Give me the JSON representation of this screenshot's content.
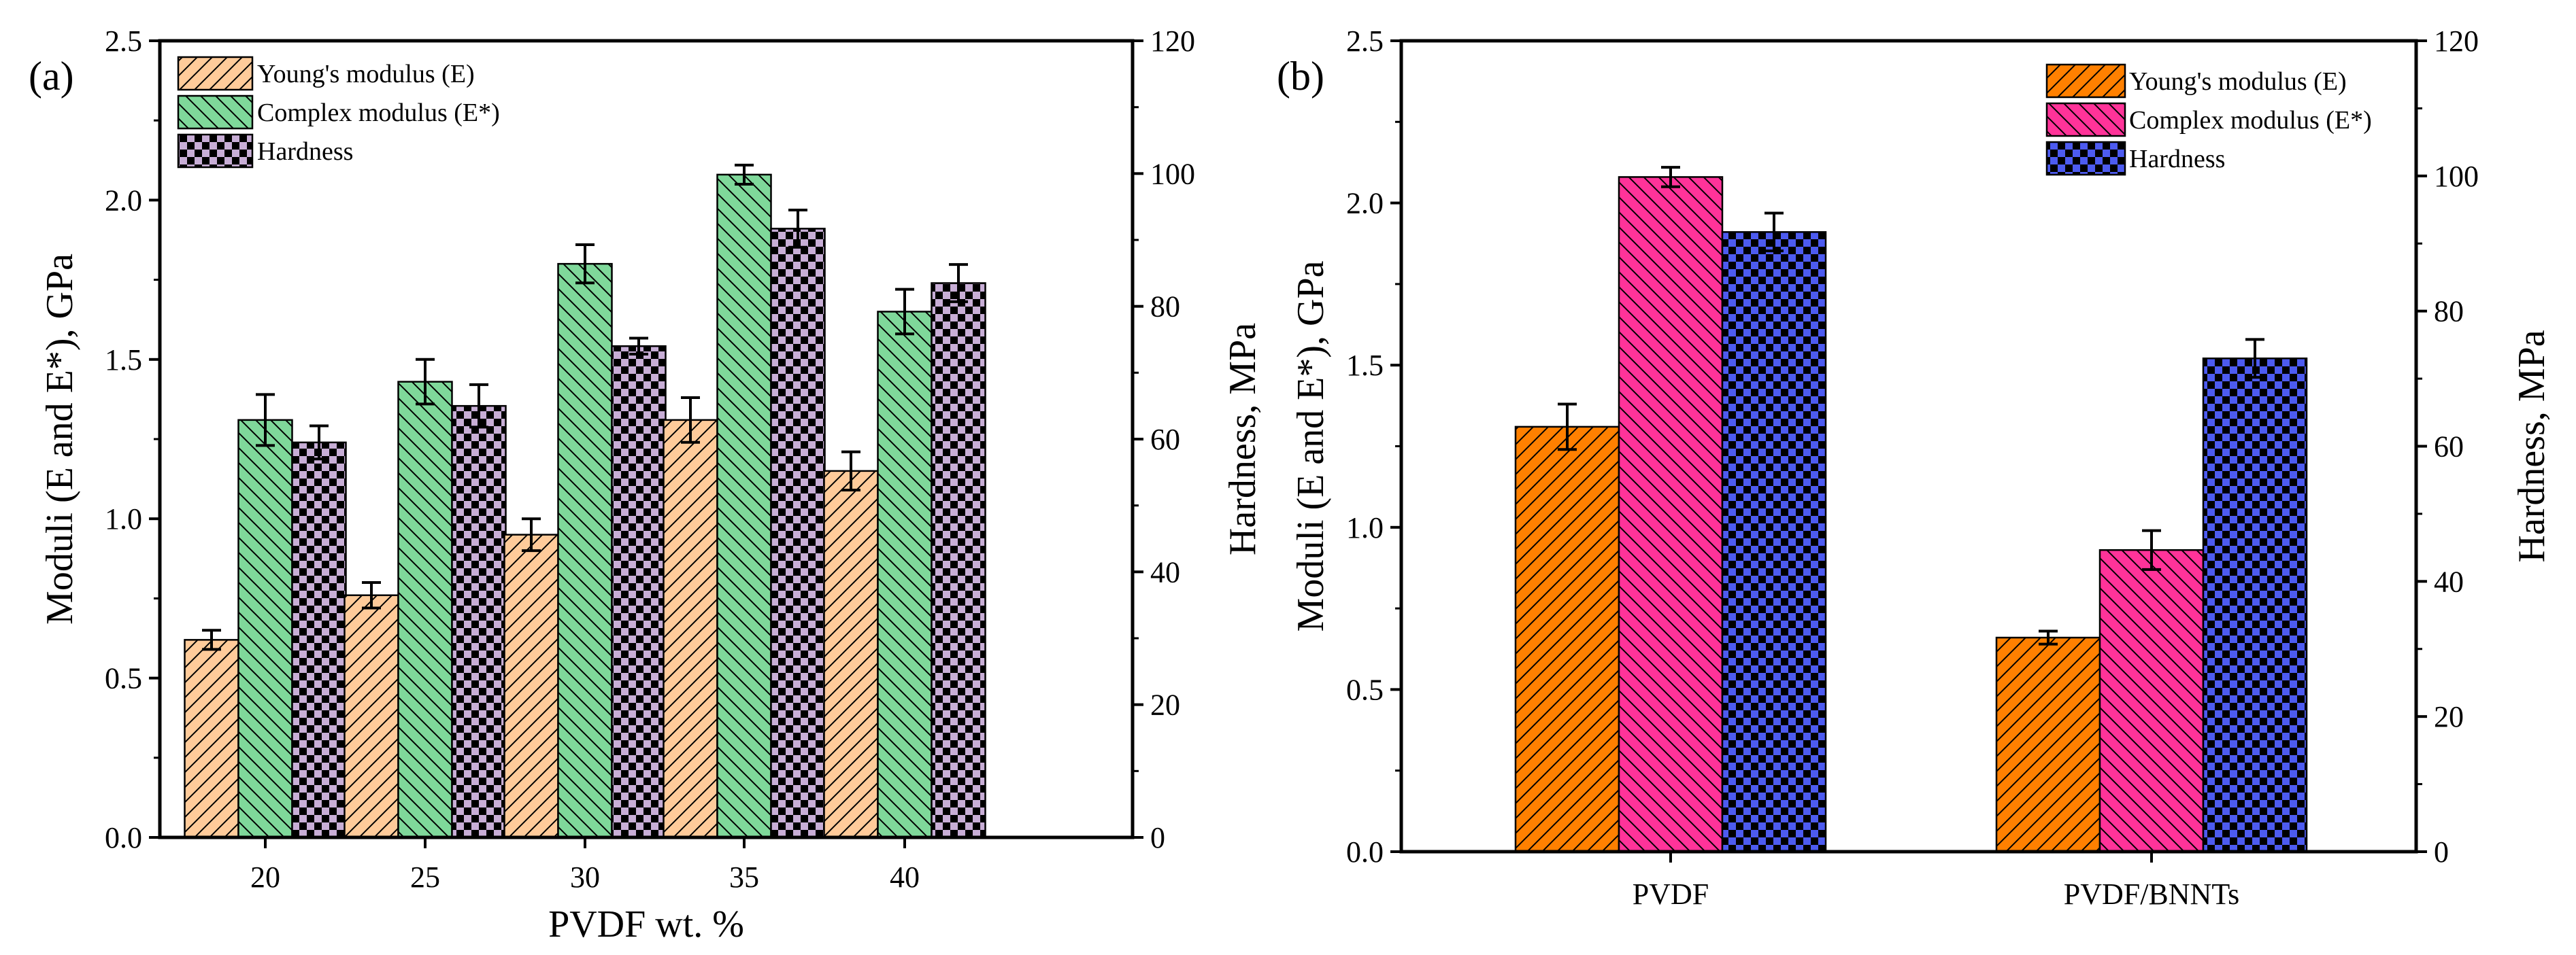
{
  "chart_data": [
    {
      "panel_label": "(a)",
      "type": "bar",
      "categories": [
        "20",
        "25",
        "30",
        "35",
        "40"
      ],
      "xlabel": "PVDF wt. %",
      "ylabel_left": "Moduli (E and E*), GPa",
      "ylabel_right": "Hardness, MPa",
      "ylim_left": [
        0,
        2.5
      ],
      "ylim_right": [
        0,
        120
      ],
      "yticks_left": [
        "0.0",
        "0.5",
        "1.0",
        "1.5",
        "2.0",
        "2.5"
      ],
      "yticks_right": [
        "0",
        "20",
        "40",
        "60",
        "80",
        "100",
        "120"
      ],
      "legend_position": "top-left",
      "series": [
        {
          "name": "Young's modulus (E)",
          "axis": "left",
          "color": "#FFCB9A",
          "pattern": "hatch",
          "values": [
            0.62,
            0.76,
            0.95,
            1.31,
            1.15
          ],
          "errors": [
            0.03,
            0.04,
            0.05,
            0.07,
            0.06
          ]
        },
        {
          "name": "Complex modulus (E*)",
          "axis": "left",
          "color": "#7FD89A",
          "pattern": "hatch-back",
          "values": [
            1.31,
            1.43,
            1.8,
            2.08,
            1.65
          ],
          "errors": [
            0.08,
            0.07,
            0.06,
            0.03,
            0.07
          ]
        },
        {
          "name": "Hardness",
          "axis": "right",
          "color": "#C8AED6",
          "pattern": "checker",
          "values": [
            59.5,
            65.0,
            74.0,
            91.7,
            83.5
          ],
          "errors": [
            2.5,
            3.2,
            1.2,
            2.8,
            2.8
          ]
        }
      ]
    },
    {
      "panel_label": "(b)",
      "type": "bar",
      "categories": [
        "PVDF",
        "PVDF/BNNTs"
      ],
      "xlabel": "",
      "ylabel_left": "Moduli (E and E*), GPa",
      "ylabel_right": "Hardness, MPa",
      "ylim_left": [
        0,
        2.5
      ],
      "ylim_right": [
        0,
        120
      ],
      "yticks_left": [
        "0.0",
        "0.5",
        "1.0",
        "1.5",
        "2.0",
        "2.5"
      ],
      "yticks_right": [
        "0",
        "20",
        "40",
        "60",
        "80",
        "100",
        "120"
      ],
      "legend_position": "top-right",
      "series": [
        {
          "name": "Young's modulus (E)",
          "axis": "left",
          "color": "#FF8000",
          "pattern": "hatch",
          "values": [
            1.31,
            0.66
          ],
          "errors": [
            0.07,
            0.02
          ]
        },
        {
          "name": "Complex modulus (E*)",
          "axis": "left",
          "color": "#FF3399",
          "pattern": "hatch-back",
          "values": [
            2.08,
            0.93
          ],
          "errors": [
            0.03,
            0.06
          ]
        },
        {
          "name": "Hardness",
          "axis": "right",
          "color": "#4D5BF0",
          "pattern": "checker",
          "values": [
            91.7,
            73.0
          ],
          "errors": [
            2.8,
            2.8
          ]
        }
      ]
    }
  ]
}
